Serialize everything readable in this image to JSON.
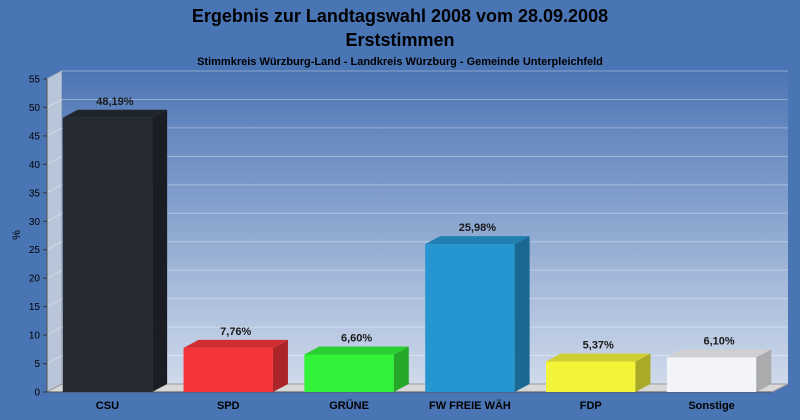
{
  "chart_data": {
    "type": "bar",
    "title": "Ergebnis zur Landtagswahl 2008 vom 28.09.2008",
    "title_line2": "Erststimmen",
    "subtitle": "Stimmkreis Würzburg-Land - Landkreis Würzburg - Gemeinde Unterpleichfeld",
    "ylabel": "%",
    "xlabel": "",
    "ylim": [
      0,
      55
    ],
    "yticks": [
      0,
      5,
      10,
      15,
      20,
      25,
      30,
      35,
      40,
      45,
      50,
      55
    ],
    "grid": true,
    "legend": "none",
    "categories": [
      "CSU",
      "SPD",
      "GRÜNE",
      "FW FREIE WÄH",
      "FDP",
      "Sonstige"
    ],
    "values": [
      48.19,
      7.76,
      6.6,
      25.98,
      5.37,
      6.1
    ],
    "value_labels": [
      "48,19%",
      "7,76%",
      "6,60%",
      "25,98%",
      "5,37%",
      "6,10%"
    ],
    "colors": [
      "#262a33",
      "#f43539",
      "#33f23a",
      "#2596d0",
      "#f3f33a",
      "#f3f4f7"
    ]
  },
  "style": {
    "background": "#4a75b5",
    "plot_top": "#4c75b5",
    "plot_bottom": "#cfdaeb",
    "floor": "#d8d8d8"
  }
}
